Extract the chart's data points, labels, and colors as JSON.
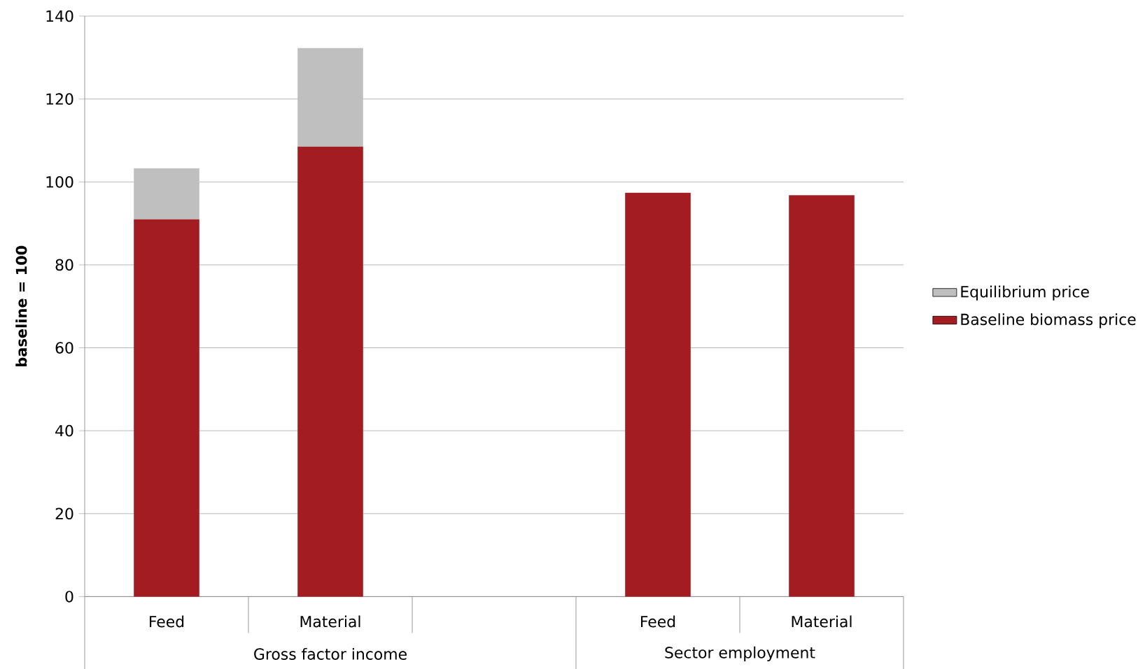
{
  "chart_data": {
    "type": "bar",
    "stacked": true,
    "ylabel": "baseline = 100",
    "categories": [
      "Feed",
      "Material",
      null,
      "Feed",
      "Material"
    ],
    "series": [
      {
        "name": "Baseline biomass price",
        "color": "#a31c21",
        "values": [
          91,
          108.5,
          null,
          97.4,
          96.8
        ]
      },
      {
        "name": "Equilibrium price",
        "color": "#bfbfbf",
        "values": [
          12.3,
          23.8,
          null,
          null,
          null
        ]
      }
    ],
    "annotations": [
      "Gross factor income",
      "Sector employment"
    ],
    "ylim": [
      0,
      140
    ],
    "yticks": [
      0,
      20,
      40,
      60,
      80,
      100,
      120,
      140
    ],
    "grid": "y",
    "legend": "right"
  }
}
